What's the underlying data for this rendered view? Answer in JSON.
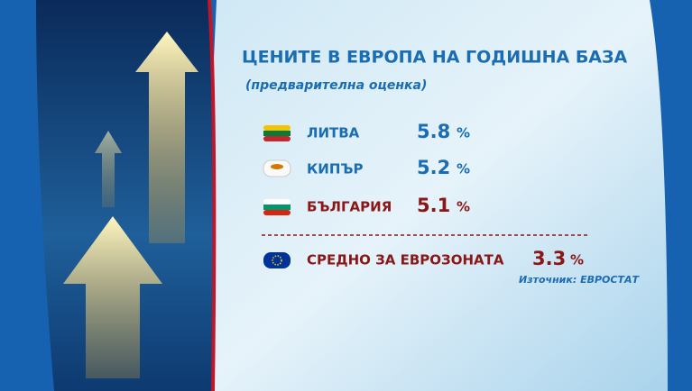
{
  "header": {
    "title": "ЦЕНИТЕ В ЕВРОПА НА ГОДИШНА БАЗА",
    "subtitle": "(предварителна оценка)"
  },
  "rows": [
    {
      "name": "ЛИТВА",
      "value": 5.8,
      "unit": "%"
    },
    {
      "name": "КИПЪР",
      "value": 5.2,
      "unit": "%"
    },
    {
      "name": "БЪЛГАРИЯ",
      "value": 5.1,
      "unit": "%"
    }
  ],
  "average": {
    "name": "СРЕДНО ЗА ЕВРОЗОНАТА",
    "value": 3.3,
    "unit": "%"
  },
  "source": "Източник: ЕВРОСТАТ"
}
